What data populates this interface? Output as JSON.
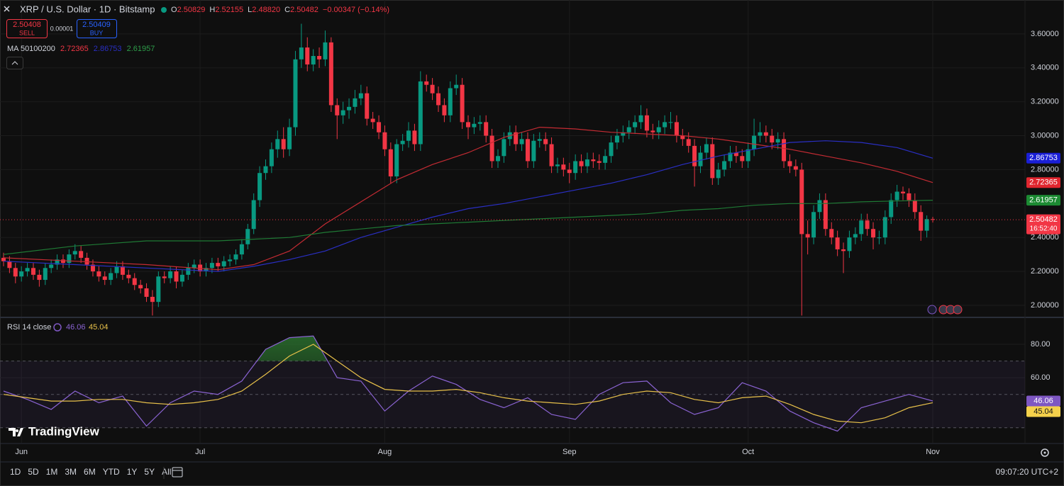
{
  "header": {
    "symbol": "XRP / U.S. Dollar · 1D · Bitstamp",
    "ohlc": [
      {
        "key": "O",
        "value": "2.50829"
      },
      {
        "key": "H",
        "value": "2.52155"
      },
      {
        "key": "L",
        "value": "2.48820"
      },
      {
        "key": "C",
        "value": "2.50482"
      }
    ],
    "change": "−0.00347 (−0.14%)"
  },
  "trade": {
    "sell_price": "2.50408",
    "sell": "SELL",
    "spread": "0.00001",
    "buy_price": "2.50409",
    "buy": "BUY"
  },
  "ma_legend": {
    "title": "MA 50100200",
    "values": [
      "2.72365",
      "2.86753",
      "2.61957"
    ]
  },
  "rsi_legend": {
    "title": "RSI 14 close",
    "values": [
      "46.06",
      "45.04"
    ]
  },
  "brand": "TradingView",
  "toolbar": {
    "ranges": [
      "1D",
      "5D",
      "1M",
      "3M",
      "6M",
      "YTD",
      "1Y",
      "5Y",
      "All"
    ],
    "clock": "09:07:20 UTC+2"
  },
  "chart_data": [
    {
      "type": "candlestick",
      "up_color": "#089981",
      "down_color": "#f23645",
      "grid": true,
      "categories": [
        null,
        null,
        null,
        "Jun",
        null,
        null,
        null,
        null,
        null,
        null,
        null,
        null,
        null,
        null,
        null,
        null,
        null,
        null,
        null,
        null,
        null,
        null,
        null,
        null,
        null,
        null,
        null,
        null,
        null,
        null,
        null,
        null,
        null,
        "Jul",
        null,
        null,
        null,
        null,
        null,
        null,
        null,
        null,
        null,
        null,
        null,
        null,
        null,
        null,
        null,
        null,
        null,
        null,
        null,
        null,
        null,
        null,
        null,
        null,
        null,
        null,
        null,
        null,
        null,
        null,
        "Aug",
        null,
        null,
        null,
        null,
        null,
        null,
        null,
        null,
        null,
        null,
        null,
        null,
        null,
        null,
        null,
        null,
        null,
        null,
        null,
        null,
        null,
        null,
        null,
        null,
        null,
        null,
        null,
        null,
        null,
        null,
        "Sep",
        null,
        null,
        null,
        null,
        null,
        null,
        null,
        null,
        null,
        null,
        null,
        null,
        null,
        null,
        null,
        null,
        null,
        null,
        null,
        null,
        null,
        null,
        null,
        null,
        null,
        null,
        null,
        null,
        null,
        "Oct",
        null,
        null,
        null,
        null,
        null,
        null,
        null,
        null,
        null,
        null,
        null,
        null,
        null,
        null,
        null,
        null,
        null,
        null,
        null,
        null,
        null,
        null,
        null,
        null,
        null,
        null,
        null,
        null,
        null,
        null,
        "Nov"
      ],
      "open": [
        2.28,
        2.26,
        2.22,
        2.17,
        2.2,
        2.22,
        2.18,
        2.15,
        2.22,
        2.24,
        2.27,
        2.25,
        2.3,
        2.32,
        2.28,
        2.24,
        2.2,
        2.17,
        2.15,
        2.19,
        2.23,
        2.18,
        2.16,
        2.12,
        2.1,
        2.05,
        2.02,
        2.17,
        2.16,
        2.2,
        2.14,
        2.18,
        2.22,
        2.24,
        2.2,
        2.22,
        2.25,
        2.23,
        2.26,
        2.27,
        2.3,
        2.36,
        2.45,
        2.62,
        2.78,
        2.82,
        2.92,
        2.98,
        2.92,
        3.05,
        3.45,
        3.52,
        3.42,
        3.47,
        3.45,
        3.55,
        3.18,
        3.12,
        3.15,
        3.17,
        3.22,
        3.25,
        3.1,
        3.08,
        3.02,
        2.92,
        2.76,
        2.95,
        2.97,
        3.03,
        2.95,
        3.32,
        3.3,
        3.25,
        3.18,
        3.12,
        3.28,
        3.3,
        3.08,
        3.05,
        3.07,
        3.08,
        3.0,
        2.85,
        2.88,
        2.98,
        3.02,
        2.95,
        2.98,
        2.85,
        2.97,
        2.98,
        2.95,
        2.82,
        2.83,
        2.8,
        2.78,
        2.85,
        2.82,
        2.86,
        2.85,
        2.84,
        2.88,
        2.96,
        3.0,
        3.02,
        3.05,
        3.08,
        3.12,
        3.03,
        3.02,
        3.05,
        3.08,
        3.08,
        3.0,
        2.98,
        2.94,
        2.82,
        2.9,
        2.95,
        2.75,
        2.8,
        2.85,
        2.9,
        2.88,
        2.85,
        2.92,
        3.0,
        3.02,
        3.0,
        2.96,
        2.98,
        2.85,
        2.82,
        2.8,
        2.42,
        2.4,
        2.55,
        2.62,
        2.45,
        2.4,
        2.33,
        2.32,
        2.4,
        2.42,
        2.5,
        2.45,
        2.4,
        2.4,
        2.52,
        2.62,
        2.67,
        2.66,
        2.62,
        2.55,
        2.44,
        2.50829
      ],
      "high": [
        2.31,
        2.29,
        2.25,
        2.23,
        2.25,
        2.25,
        2.21,
        2.25,
        2.27,
        2.3,
        2.3,
        2.33,
        2.36,
        2.35,
        2.31,
        2.27,
        2.23,
        2.2,
        2.22,
        2.26,
        2.26,
        2.21,
        2.19,
        2.15,
        2.13,
        2.09,
        2.2,
        2.2,
        2.23,
        2.23,
        2.21,
        2.25,
        2.27,
        2.27,
        2.25,
        2.28,
        2.28,
        2.29,
        2.3,
        2.33,
        2.39,
        2.48,
        2.66,
        2.82,
        2.86,
        2.96,
        3.03,
        3.05,
        3.1,
        3.5,
        3.66,
        3.58,
        3.51,
        3.52,
        3.62,
        3.58,
        3.22,
        3.2,
        3.22,
        3.27,
        3.3,
        3.29,
        3.14,
        3.12,
        3.06,
        2.96,
        2.98,
        3.01,
        3.08,
        3.07,
        3.38,
        3.36,
        3.34,
        3.29,
        3.22,
        3.32,
        3.36,
        3.34,
        3.12,
        3.11,
        3.12,
        3.12,
        3.04,
        2.92,
        3.02,
        3.06,
        3.06,
        3.02,
        3.02,
        3.01,
        3.02,
        3.02,
        2.99,
        2.87,
        2.87,
        2.84,
        2.89,
        2.89,
        2.9,
        2.9,
        2.89,
        2.92,
        3.0,
        3.04,
        3.06,
        3.09,
        3.12,
        3.18,
        3.16,
        3.07,
        3.09,
        3.12,
        3.14,
        3.12,
        3.04,
        3.02,
        2.98,
        2.94,
        2.99,
        2.99,
        2.84,
        2.89,
        2.94,
        2.94,
        2.92,
        2.96,
        3.1,
        3.08,
        3.06,
        3.04,
        3.02,
        3.02,
        2.89,
        2.86,
        2.84,
        2.5,
        2.59,
        2.66,
        2.66,
        2.49,
        2.44,
        2.37,
        2.44,
        2.46,
        2.54,
        2.54,
        2.49,
        2.44,
        2.56,
        2.66,
        2.71,
        2.7,
        2.69,
        2.66,
        2.59,
        2.53,
        2.52155
      ],
      "low": [
        2.23,
        2.19,
        2.13,
        2.14,
        2.17,
        2.15,
        2.11,
        2.12,
        2.19,
        2.21,
        2.22,
        2.22,
        2.27,
        2.25,
        2.21,
        2.17,
        2.14,
        2.12,
        2.12,
        2.16,
        2.15,
        2.13,
        2.09,
        2.07,
        2.02,
        1.94,
        1.99,
        2.13,
        2.13,
        2.1,
        2.11,
        2.15,
        2.19,
        2.17,
        2.17,
        2.19,
        2.2,
        2.2,
        2.23,
        2.24,
        2.27,
        2.33,
        2.42,
        2.58,
        2.74,
        2.78,
        2.87,
        2.87,
        2.88,
        3.0,
        3.4,
        3.38,
        3.38,
        3.4,
        3.41,
        3.14,
        2.98,
        3.07,
        3.1,
        3.13,
        3.18,
        3.06,
        3.04,
        2.98,
        2.88,
        2.72,
        2.72,
        2.91,
        2.93,
        2.91,
        2.91,
        3.26,
        3.21,
        3.14,
        3.08,
        3.08,
        3.24,
        3.04,
        2.98,
        3.01,
        3.03,
        2.96,
        2.81,
        2.81,
        2.84,
        2.94,
        2.91,
        2.91,
        2.81,
        2.81,
        2.93,
        2.91,
        2.78,
        2.78,
        2.76,
        2.72,
        2.74,
        2.78,
        2.78,
        2.81,
        2.8,
        2.8,
        2.84,
        2.92,
        2.96,
        2.98,
        3.01,
        3.04,
        2.99,
        2.98,
        2.98,
        3.01,
        3.04,
        2.96,
        2.94,
        2.9,
        2.7,
        2.78,
        2.86,
        2.71,
        2.71,
        2.76,
        2.81,
        2.84,
        2.81,
        2.81,
        2.88,
        2.96,
        2.96,
        2.92,
        2.92,
        2.81,
        2.78,
        2.76,
        1.94,
        2.3,
        2.36,
        2.51,
        2.41,
        2.36,
        2.29,
        2.19,
        2.28,
        2.36,
        2.38,
        2.41,
        2.33,
        2.36,
        2.36,
        2.48,
        2.58,
        2.62,
        2.58,
        2.51,
        2.38,
        2.4,
        2.4882
      ],
      "close": [
        2.26,
        2.22,
        2.17,
        2.2,
        2.22,
        2.18,
        2.15,
        2.22,
        2.24,
        2.27,
        2.25,
        2.3,
        2.32,
        2.28,
        2.24,
        2.2,
        2.17,
        2.15,
        2.19,
        2.23,
        2.18,
        2.16,
        2.12,
        2.1,
        2.05,
        2.02,
        2.17,
        2.16,
        2.2,
        2.14,
        2.18,
        2.22,
        2.24,
        2.2,
        2.22,
        2.25,
        2.23,
        2.26,
        2.27,
        2.3,
        2.36,
        2.45,
        2.62,
        2.78,
        2.82,
        2.92,
        2.98,
        2.92,
        3.05,
        3.45,
        3.52,
        3.42,
        3.47,
        3.45,
        3.55,
        3.18,
        3.12,
        3.15,
        3.17,
        3.22,
        3.25,
        3.1,
        3.08,
        3.02,
        2.92,
        2.76,
        2.95,
        2.97,
        3.03,
        2.95,
        3.32,
        3.3,
        3.25,
        3.18,
        3.12,
        3.28,
        3.3,
        3.08,
        3.05,
        3.07,
        3.08,
        3.0,
        2.85,
        2.88,
        2.98,
        3.02,
        2.95,
        2.98,
        2.85,
        2.97,
        2.98,
        2.95,
        2.82,
        2.83,
        2.8,
        2.78,
        2.85,
        2.82,
        2.86,
        2.85,
        2.84,
        2.88,
        2.96,
        3.0,
        3.02,
        3.05,
        3.08,
        3.12,
        3.03,
        3.02,
        3.05,
        3.08,
        3.08,
        3.0,
        2.98,
        2.94,
        2.82,
        2.9,
        2.95,
        2.75,
        2.8,
        2.85,
        2.9,
        2.88,
        2.85,
        2.92,
        3.0,
        3.02,
        3.0,
        2.96,
        2.98,
        2.85,
        2.82,
        2.8,
        2.42,
        2.4,
        2.55,
        2.62,
        2.45,
        2.4,
        2.33,
        2.32,
        2.4,
        2.42,
        2.5,
        2.45,
        2.4,
        2.4,
        2.52,
        2.62,
        2.67,
        2.66,
        2.62,
        2.55,
        2.44,
        2.5083,
        2.50482
      ],
      "series": [
        {
          "color": "#c42b33",
          "x": [
            0,
            12,
            24,
            36,
            42,
            48,
            54,
            60,
            66,
            72,
            78,
            84,
            90,
            96,
            102,
            108,
            114,
            120,
            126,
            132,
            138,
            144,
            150,
            156
          ],
          "values": [
            2.28,
            2.26,
            2.24,
            2.21,
            2.24,
            2.32,
            2.48,
            2.61,
            2.74,
            2.83,
            2.9,
            2.99,
            3.05,
            3.04,
            3.02,
            3.01,
            3.0,
            2.98,
            2.95,
            2.92,
            2.88,
            2.84,
            2.79,
            2.72365
          ]
        },
        {
          "color": "#2a2fc4",
          "x": [
            0,
            12,
            24,
            36,
            42,
            48,
            54,
            60,
            66,
            72,
            78,
            84,
            90,
            96,
            102,
            108,
            114,
            120,
            126,
            132,
            138,
            144,
            150,
            156
          ],
          "values": [
            2.26,
            2.24,
            2.22,
            2.2,
            2.23,
            2.27,
            2.32,
            2.4,
            2.46,
            2.52,
            2.57,
            2.6,
            2.64,
            2.68,
            2.72,
            2.77,
            2.83,
            2.88,
            2.92,
            2.96,
            2.97,
            2.96,
            2.93,
            2.86753
          ]
        },
        {
          "color": "#1f7a35",
          "x": [
            0,
            12,
            24,
            36,
            42,
            48,
            54,
            60,
            66,
            72,
            78,
            84,
            90,
            96,
            102,
            108,
            114,
            120,
            126,
            132,
            138,
            144,
            150,
            156
          ],
          "values": [
            2.3,
            2.35,
            2.38,
            2.38,
            2.39,
            2.4,
            2.43,
            2.45,
            2.47,
            2.48,
            2.49,
            2.5,
            2.51,
            2.52,
            2.53,
            2.54,
            2.56,
            2.57,
            2.59,
            2.6,
            2.6,
            2.61,
            2.615,
            2.61957
          ]
        }
      ],
      "ylim": [
        1.933,
        3.8
      ],
      "yticks": [
        {
          "value": 2.0,
          "label": "2.00000"
        },
        {
          "value": 2.2,
          "label": "2.20000"
        },
        {
          "value": 2.4,
          "label": "2.40000"
        },
        {
          "value": 2.6,
          "label": "2.60000"
        },
        {
          "value": 2.8,
          "label": "2.80000"
        },
        {
          "value": 3.0,
          "label": "3.00000"
        },
        {
          "value": 3.2,
          "label": "3.20000"
        },
        {
          "value": 3.4,
          "label": "3.40000"
        },
        {
          "value": 3.6,
          "label": "3.60000"
        }
      ],
      "axis_tags": [
        {
          "value": 2.86753,
          "label": "2.86753",
          "color": "#1a1fd6"
        },
        {
          "value": 2.72365,
          "label": "2.72365",
          "color": "#e0262f"
        },
        {
          "value": 2.61957,
          "label": "2.61957",
          "color": "#1c8a32"
        },
        {
          "value": 2.50482,
          "label": "2.50482",
          "color": "#f23645",
          "countdown": "16:52:40"
        }
      ]
    },
    {
      "type": "line",
      "grid": true,
      "series": [
        {
          "color": "#8a63d2",
          "x": [
            0,
            4,
            8,
            12,
            16,
            20,
            24,
            28,
            32,
            36,
            40,
            44,
            48,
            52,
            56,
            60,
            64,
            68,
            72,
            76,
            80,
            84,
            88,
            92,
            96,
            100,
            104,
            108,
            112,
            116,
            120,
            124,
            128,
            132,
            136,
            140,
            144,
            148,
            152,
            156
          ],
          "values": [
            52,
            47,
            41,
            52,
            45,
            49,
            31,
            45,
            52,
            50,
            58,
            77,
            84,
            85,
            60,
            58,
            40,
            52,
            61,
            56,
            47,
            42,
            48,
            38,
            35,
            50,
            57,
            58,
            45,
            38,
            42,
            57,
            52,
            40,
            33,
            28,
            42,
            46,
            50,
            46.06
          ]
        },
        {
          "color": "#e8c14a",
          "x": [
            0,
            4,
            8,
            12,
            16,
            20,
            24,
            28,
            32,
            36,
            40,
            44,
            48,
            52,
            56,
            60,
            64,
            68,
            72,
            76,
            80,
            84,
            88,
            92,
            96,
            100,
            104,
            108,
            112,
            116,
            120,
            124,
            128,
            132,
            136,
            140,
            144,
            148,
            152,
            156
          ],
          "values": [
            50,
            48,
            46,
            46,
            47,
            47,
            45,
            44,
            45,
            47,
            52,
            62,
            73,
            80,
            70,
            60,
            53,
            52,
            52,
            53,
            51,
            48,
            46,
            45,
            44,
            46,
            50,
            52,
            51,
            47,
            45,
            48,
            49,
            44,
            38,
            34,
            33,
            36,
            42,
            45.04
          ]
        }
      ],
      "bands": [
        70,
        50,
        30
      ],
      "ylim": [
        21,
        95.3
      ],
      "yticks": [
        {
          "value": 60,
          "label": "60.00"
        },
        {
          "value": 80,
          "label": "80.00"
        }
      ],
      "axis_tags": [
        {
          "value": 46.06,
          "label": "46.06",
          "color": "#7e57c2"
        },
        {
          "value": 45.04,
          "label": "45.04",
          "color": "#f5d14b"
        }
      ]
    }
  ]
}
